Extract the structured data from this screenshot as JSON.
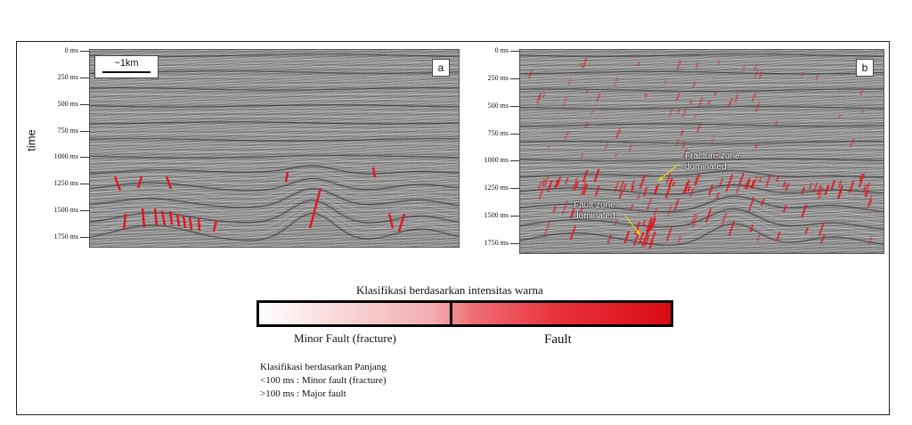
{
  "figure": {
    "y_axis_label": "time",
    "panel_a": {
      "letter": "a",
      "scale_label": "~1km",
      "ticks": [
        "0 ms",
        "250 ms",
        "500 ms",
        "750 ms",
        "1000 ms",
        "1250 ms",
        "1500 ms",
        "1750 ms"
      ]
    },
    "panel_b": {
      "letter": "b",
      "ticks": [
        "0 ms",
        "250 ms",
        "500 ms",
        "750 ms",
        "1000 ms",
        "1250 ms",
        "1500 ms",
        "1750 ms"
      ],
      "annotation_fracture": [
        "Fracture zone",
        "dominated"
      ],
      "annotation_fault": [
        "Fault zone",
        "dominated"
      ]
    },
    "colors": {
      "fault_red": "#e3141e",
      "seismic_gray": "#9a9a9a",
      "arrow_yellow": "#e8d21a"
    }
  },
  "legend": {
    "title": "Klasifikasi berdasarkan intensitas warna",
    "minor_label": "Minor Fault (fracture)",
    "fault_label": "Fault"
  },
  "notes": {
    "heading": "Klasifikasi berdasarkan Panjang",
    "line1": "<100 ms : Minor fault (fracture)",
    "line2": ">100 ms : Major fault"
  }
}
